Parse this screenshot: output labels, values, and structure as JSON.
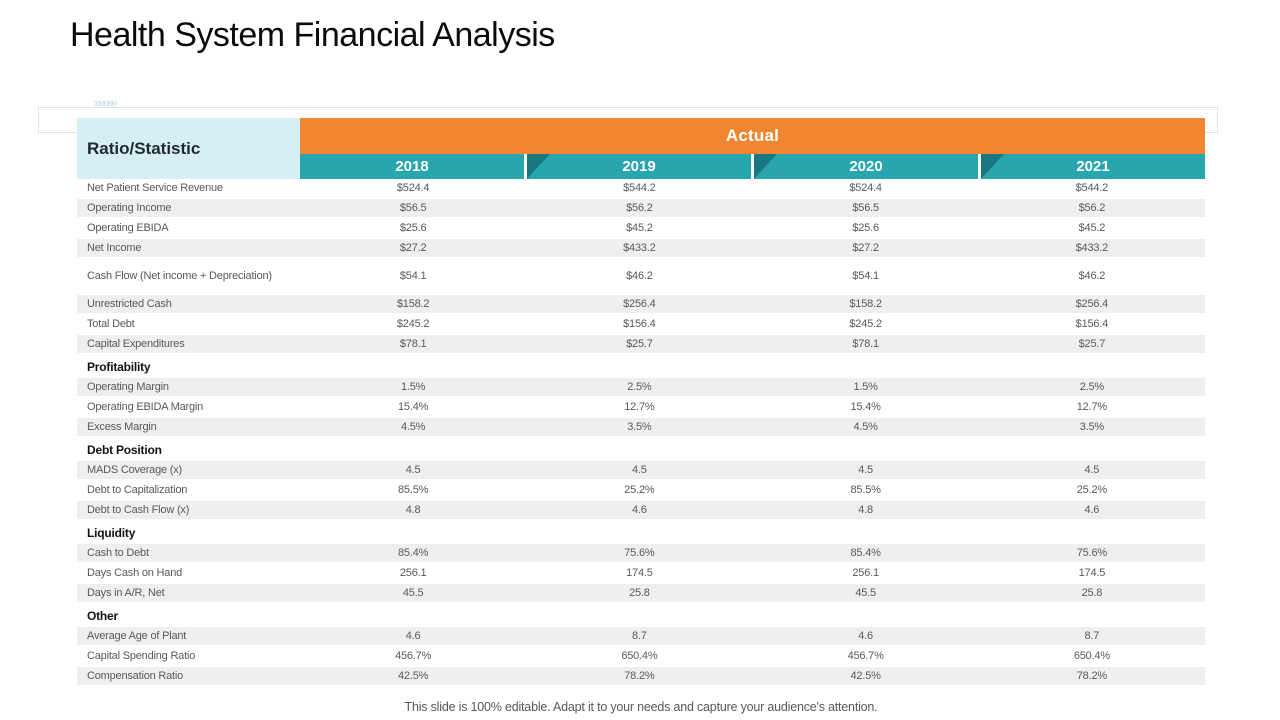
{
  "slide": {
    "title": "Health System Financial Analysis",
    "decor_chevrons": "»»»»»",
    "footer": "This slide is 100% editable. Adapt it to your needs and capture your audience's attention."
  },
  "colors": {
    "orange": "#F0862F",
    "teal": "#29A5AE",
    "teal_dark": "#166F7A",
    "corner_bg": "#D6EFF3",
    "row_shade": "#EFEFEF",
    "text_gray": "#595959"
  },
  "table": {
    "corner_header": "Ratio/Statistic",
    "group_header": "Actual",
    "years": [
      "2018",
      "2019",
      "2020",
      "2021"
    ],
    "rows": [
      {
        "type": "data",
        "label": "Net Patient Service Revenue",
        "values": [
          "$524.4",
          "$544.2",
          "$524.4",
          "$544.2"
        ],
        "shaded": false
      },
      {
        "type": "data",
        "label": "Operating Income",
        "values": [
          "$56.5",
          "$56.2",
          "$56.5",
          "$56.2"
        ],
        "shaded": true
      },
      {
        "type": "data",
        "label": "Operating EBIDA",
        "values": [
          "$25.6",
          "$45.2",
          "$25.6",
          "$45.2"
        ],
        "shaded": false
      },
      {
        "type": "data",
        "label": "Net Income",
        "values": [
          "$27.2",
          "$433.2",
          "$27.2",
          "$433.2"
        ],
        "shaded": true
      },
      {
        "type": "spacer"
      },
      {
        "type": "data",
        "label": "Cash Flow (Net income + Depreciation)",
        "values": [
          "$54.1",
          "$46.2",
          "$54.1",
          "$46.2"
        ],
        "shaded": false
      },
      {
        "type": "spacer"
      },
      {
        "type": "data",
        "label": "Unrestricted Cash",
        "values": [
          "$158.2",
          "$256.4",
          "$158.2",
          "$256.4"
        ],
        "shaded": true
      },
      {
        "type": "data",
        "label": "Total Debt",
        "values": [
          "$245.2",
          "$156.4",
          "$245.2",
          "$156.4"
        ],
        "shaded": false
      },
      {
        "type": "data",
        "label": "Capital Expenditures",
        "values": [
          "$78.1",
          "$25.7",
          "$78.1",
          "$25.7"
        ],
        "shaded": true
      },
      {
        "type": "section",
        "label": "Profitability"
      },
      {
        "type": "data",
        "label": "Operating Margin",
        "values": [
          "1.5%",
          "2.5%",
          "1.5%",
          "2.5%"
        ],
        "shaded": true
      },
      {
        "type": "data",
        "label": "Operating EBIDA Margin",
        "values": [
          "15.4%",
          "12.7%",
          "15.4%",
          "12.7%"
        ],
        "shaded": false
      },
      {
        "type": "data",
        "label": "Excess Margin",
        "values": [
          "4.5%",
          "3.5%",
          "4.5%",
          "3.5%"
        ],
        "shaded": true
      },
      {
        "type": "section",
        "label": "Debt Position"
      },
      {
        "type": "data",
        "label": "MADS Coverage (x)",
        "values": [
          "4.5",
          "4.5",
          "4.5",
          "4.5"
        ],
        "shaded": true
      },
      {
        "type": "data",
        "label": "Debt to Capitalization",
        "values": [
          "85.5%",
          "25.2%",
          "85.5%",
          "25.2%"
        ],
        "shaded": false
      },
      {
        "type": "data",
        "label": "Debt to Cash Flow (x)",
        "values": [
          "4.8",
          "4.6",
          "4.8",
          "4.6"
        ],
        "shaded": true
      },
      {
        "type": "section",
        "label": "Liquidity"
      },
      {
        "type": "data",
        "label": "Cash to Debt",
        "values": [
          "85.4%",
          "75.6%",
          "85.4%",
          "75.6%"
        ],
        "shaded": true
      },
      {
        "type": "data",
        "label": "Days Cash on Hand",
        "values": [
          "256.1",
          "174.5",
          "256.1",
          "174.5"
        ],
        "shaded": false
      },
      {
        "type": "data",
        "label": "Days in A/R, Net",
        "values": [
          "45.5",
          "25.8",
          "45.5",
          "25.8"
        ],
        "shaded": true
      },
      {
        "type": "section",
        "label": "Other"
      },
      {
        "type": "data",
        "label": "Average Age of Plant",
        "values": [
          "4.6",
          "8.7",
          "4.6",
          "8.7"
        ],
        "shaded": true
      },
      {
        "type": "data",
        "label": "Capital Spending Ratio",
        "values": [
          "456.7%",
          "650.4%",
          "456.7%",
          "650.4%"
        ],
        "shaded": false
      },
      {
        "type": "data",
        "label": "Compensation Ratio",
        "values": [
          "42.5%",
          "78.2%",
          "42.5%",
          "78.2%"
        ],
        "shaded": true
      }
    ]
  }
}
